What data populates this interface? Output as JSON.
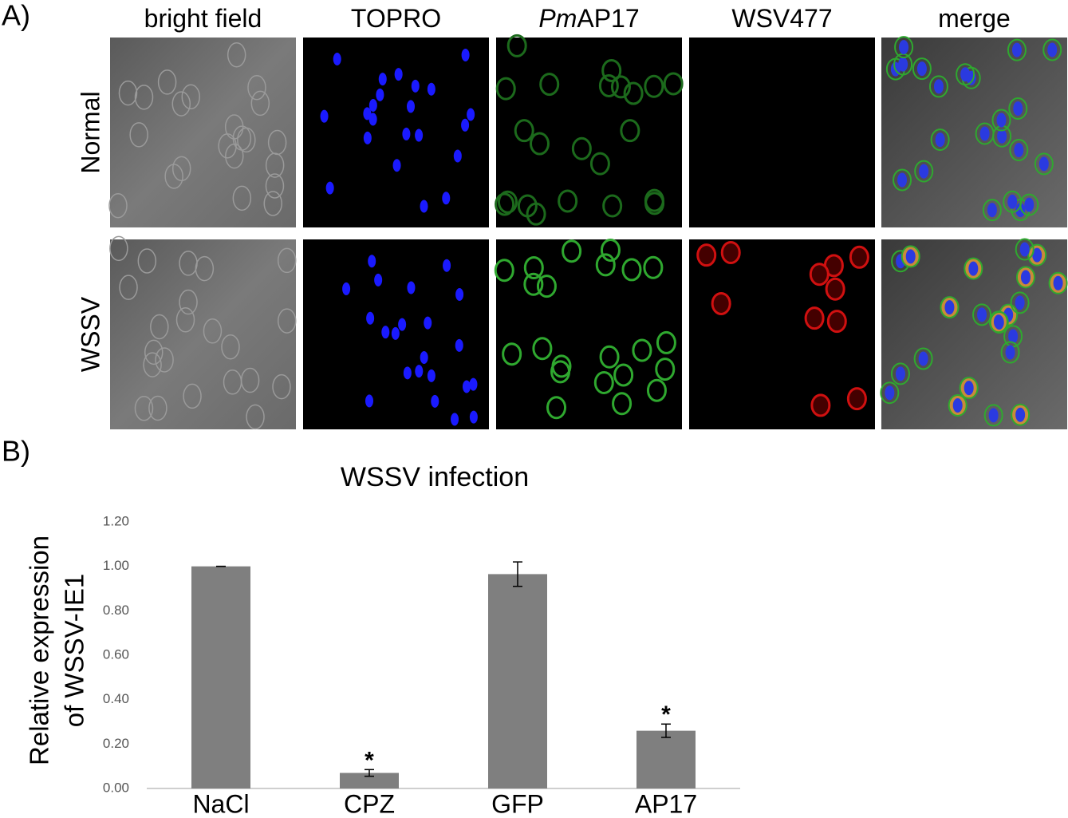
{
  "panel_a": {
    "label": "A)",
    "columns": [
      [
        "bright field"
      ],
      [
        "TOPRO"
      ],
      [
        "Pm",
        "AP17"
      ],
      [
        "WSV477"
      ],
      [
        "merge"
      ]
    ],
    "rows": [
      "Normal",
      "WSSV"
    ]
  },
  "panel_b": {
    "label": "B)"
  },
  "chart_data": {
    "type": "bar",
    "title": "WSSV infection",
    "ylabel": [
      "Relative expression",
      "of WSSV-IE1"
    ],
    "categories": [
      "NaCl",
      "CPZ",
      "GFP",
      "AP17"
    ],
    "values": [
      1.0,
      0.07,
      0.965,
      0.26
    ],
    "errors": [
      0,
      0.015,
      0.055,
      0.03
    ],
    "color": "#7f7f7f",
    "ylim": [
      0,
      1.2
    ],
    "yticks": [
      {
        "value": 0,
        "label": "0.00"
      },
      {
        "value": 0.2,
        "label": "0.20"
      },
      {
        "value": 0.4,
        "label": "0.40"
      },
      {
        "value": 0.6,
        "label": "0.60"
      },
      {
        "value": 0.8,
        "label": "0.80"
      },
      {
        "value": 1.0,
        "label": "1.00"
      },
      {
        "value": 1.2,
        "label": "1.20"
      }
    ],
    "annotations": [
      {
        "text": "*",
        "category": "CPZ"
      },
      {
        "text": "*",
        "category": "AP17"
      }
    ]
  }
}
